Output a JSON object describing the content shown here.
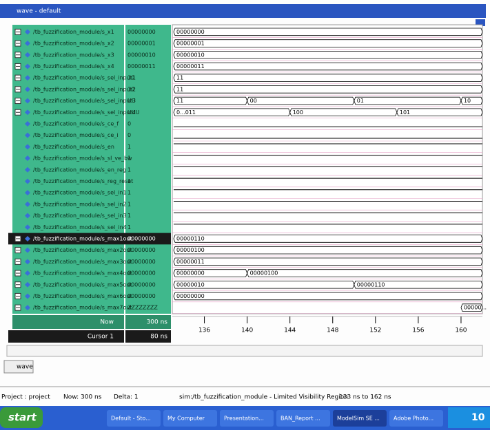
{
  "window": {
    "title": "wave - default"
  },
  "signals": [
    {
      "name": "/tb_fuzzification_module/s_x1",
      "value": "00000000",
      "wave": [
        {
          "t": 133,
          "label": "00000000"
        }
      ]
    },
    {
      "name": "/tb_fuzzification_module/s_x2",
      "value": "00000001",
      "wave": [
        {
          "t": 133,
          "label": "00000001"
        }
      ]
    },
    {
      "name": "/tb_fuzzification_module/s_x3",
      "value": "00000010",
      "wave": [
        {
          "t": 133,
          "label": "00000010"
        }
      ]
    },
    {
      "name": "/tb_fuzzification_module/s_x4",
      "value": "00000011",
      "wave": [
        {
          "t": 133,
          "label": "00000011"
        }
      ]
    },
    {
      "name": "/tb_fuzzification_module/s_sel_input1",
      "value": "10",
      "wave": [
        {
          "t": 133,
          "label": "11"
        }
      ]
    },
    {
      "name": "/tb_fuzzification_module/s_sel_input2",
      "value": "10",
      "wave": [
        {
          "t": 133,
          "label": "11"
        }
      ]
    },
    {
      "name": "/tb_fuzzification_module/s_sel_input3",
      "value": "UU",
      "wave": [
        {
          "t": 133,
          "label": "11"
        },
        {
          "t": 140,
          "label": "00"
        },
        {
          "t": 150,
          "label": "01"
        },
        {
          "t": 160,
          "label": "10"
        }
      ]
    },
    {
      "name": "/tb_fuzzification_module/s_sel_input4",
      "value": "UUU",
      "wave": [
        {
          "t": 133,
          "label": "0...011"
        },
        {
          "t": 144,
          "label": "100"
        },
        {
          "t": 154,
          "label": "101"
        }
      ]
    },
    {
      "name": "/tb_fuzzification_module/s_ce_f",
      "value": "0"
    },
    {
      "name": "/tb_fuzzification_module/s_ce_i",
      "value": "0"
    },
    {
      "name": "/tb_fuzzification_module/s_en",
      "value": "1"
    },
    {
      "name": "/tb_fuzzification_module/s_sl_ve_bw",
      "value": "1"
    },
    {
      "name": "/tb_fuzzification_module/s_en_reg",
      "value": "1"
    },
    {
      "name": "/tb_fuzzification_module/s_reg_reset",
      "value": "1"
    },
    {
      "name": "/tb_fuzzification_module/s_sel_in1",
      "value": "1"
    },
    {
      "name": "/tb_fuzzification_module/s_sel_in2",
      "value": "1"
    },
    {
      "name": "/tb_fuzzification_module/s_sel_in3",
      "value": "1"
    },
    {
      "name": "/tb_fuzzification_module/s_sel_in4",
      "value": "1"
    },
    {
      "name": "/tb_fuzzification_module/s_max1out",
      "value": "00000000",
      "selected": true,
      "wave": [
        {
          "t": 133,
          "label": "00000110"
        }
      ]
    },
    {
      "name": "/tb_fuzzification_module/s_max2out",
      "value": "00000000",
      "wave": [
        {
          "t": 133,
          "label": "00000100"
        }
      ]
    },
    {
      "name": "/tb_fuzzification_module/s_max3out",
      "value": "00000000",
      "wave": [
        {
          "t": 133,
          "label": "00000011"
        }
      ]
    },
    {
      "name": "/tb_fuzzification_module/s_max4out",
      "value": "00000000",
      "wave": [
        {
          "t": 133,
          "label": "00000000"
        },
        {
          "t": 140,
          "label": "00000100"
        }
      ]
    },
    {
      "name": "/tb_fuzzification_module/s_max5out",
      "value": "00000000",
      "wave": [
        {
          "t": 133,
          "label": "00000010"
        },
        {
          "t": 150,
          "label": "00000110"
        }
      ]
    },
    {
      "name": "/tb_fuzzification_module/s_max6out",
      "value": "00000000",
      "wave": [
        {
          "t": 133,
          "label": "00000000"
        }
      ]
    },
    {
      "name": "/tb_fuzzification_module/s_max7out",
      "value": "ZZZZZZZZ",
      "wave": [
        {
          "t": 160,
          "label": "00000..."
        }
      ]
    }
  ],
  "cursor_pane": {
    "now_label": "Now",
    "now_value": "300 ns",
    "cursor_label": "Cursor 1",
    "cursor_value": "80 ns"
  },
  "timeline": {
    "xlim": [
      133,
      162
    ],
    "ticks": [
      136,
      140,
      144,
      148,
      152,
      156,
      160
    ]
  },
  "tab": "wave",
  "status": {
    "project": "Project : project",
    "now": "Now: 300 ns",
    "delta": "Delta: 1",
    "region": "sim:/tb_fuzzification_module - Limited Visibility Region",
    "range": "133 ns to 162 ns"
  },
  "taskbar": {
    "start": "start",
    "items": [
      "Default - Sto...",
      "My Computer",
      "Presentation...",
      "BAN_Report ...",
      "ModelSim SE ...",
      "Adobe Photo..."
    ],
    "clock": "10"
  }
}
